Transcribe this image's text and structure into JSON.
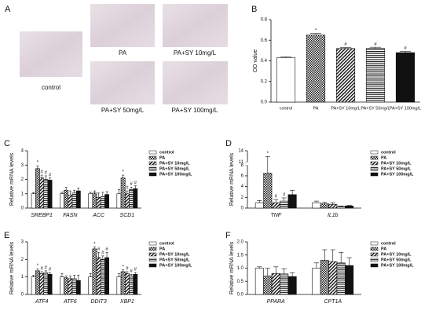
{
  "panel_a": {
    "label": "A",
    "images": [
      {
        "caption": "control"
      },
      {
        "caption": "PA"
      },
      {
        "caption": "PA+SY 10mg/L"
      },
      {
        "caption": "PA+SY 50mg/L"
      },
      {
        "caption": "PA+SY 100mg/L"
      }
    ]
  },
  "chart_data": [
    {
      "panel": "B",
      "type": "bar",
      "ylabel": "OD value",
      "categories": [
        "control",
        "PA",
        "PA+SY 10mg/L",
        "PA+SY 50mg/L",
        "PA+SY 100mg/L"
      ],
      "values": [
        0.43,
        0.65,
        0.52,
        0.52,
        0.48
      ],
      "errors": [
        0.01,
        0.015,
        0.01,
        0.012,
        0.012
      ],
      "markers": [
        null,
        "*",
        "#",
        "#",
        "#"
      ],
      "patterns": [
        "none",
        "checker",
        "diagonal",
        "horizontal",
        "solid"
      ],
      "ylim": [
        0,
        0.8
      ],
      "yticks": [
        {
          "value": 0,
          "label": "0.0"
        },
        {
          "value": 0.2,
          "label": "0.2"
        },
        {
          "value": 0.4,
          "label": "0.4"
        },
        {
          "value": 0.6,
          "label": "0.6"
        },
        {
          "value": 0.8,
          "label": "0.8"
        }
      ]
    },
    {
      "panel": "C",
      "type": "grouped_bar",
      "ylabel": "Relative mRNA levels",
      "categories": [
        "SREBP1",
        "FASN",
        "ACC",
        "SCD1"
      ],
      "series": [
        {
          "name": "control",
          "pattern": "none",
          "values": [
            1.0,
            1.0,
            1.0,
            1.0
          ],
          "errors": [
            0.08,
            0.1,
            0.1,
            0.3
          ],
          "markers": [
            null,
            null,
            null,
            null
          ]
        },
        {
          "name": "PA",
          "pattern": "checker",
          "values": [
            2.75,
            1.25,
            1.05,
            2.1
          ],
          "errors": [
            0.2,
            0.2,
            0.15,
            0.2
          ],
          "markers": [
            "*",
            null,
            null,
            "*"
          ]
        },
        {
          "name": "PA+SY 10mg/L",
          "pattern": "diagonal",
          "values": [
            2.1,
            0.9,
            0.75,
            1.0
          ],
          "errors": [
            0.2,
            0.3,
            0.3,
            0.2
          ],
          "markers": [
            "#",
            null,
            null,
            "#"
          ]
        },
        {
          "name": "PA+SY 50mg/L",
          "pattern": "horizontal",
          "values": [
            2.0,
            1.05,
            0.8,
            1.3
          ],
          "errors": [
            0.25,
            0.2,
            0.3,
            0.15
          ],
          "markers": [
            "#",
            null,
            null,
            "#"
          ]
        },
        {
          "name": "PA+SY 100mg/L",
          "pattern": "solid",
          "values": [
            1.95,
            1.2,
            0.95,
            1.35
          ],
          "errors": [
            0.15,
            0.2,
            0.2,
            0.2
          ],
          "markers": [
            "#",
            null,
            null,
            "#"
          ]
        }
      ],
      "ylim": [
        0,
        4
      ],
      "yticks": [
        0,
        1,
        2,
        3,
        4
      ]
    },
    {
      "panel": "D",
      "type": "grouped_bar",
      "ylabel": "Relative mRNA levels",
      "categories": [
        "TNF",
        "IL1b"
      ],
      "series": [
        {
          "name": "control",
          "pattern": "none",
          "values": [
            1.0,
            1.0
          ],
          "errors": [
            0.4,
            0.3
          ],
          "markers": [
            null,
            null
          ]
        },
        {
          "name": "PA",
          "pattern": "checker",
          "values": [
            6.5,
            0.8
          ],
          "errors": [
            6.0,
            0.3
          ],
          "markers": [
            "*",
            null
          ]
        },
        {
          "name": "PA+SY 10mg/L",
          "pattern": "diagonal",
          "values": [
            1.0,
            0.7
          ],
          "errors": [
            0.6,
            0.3
          ],
          "markers": [
            "#",
            null
          ]
        },
        {
          "name": "PA+SY 50mg/L",
          "pattern": "horizontal",
          "values": [
            1.3,
            0.3
          ],
          "errors": [
            0.6,
            0.1
          ],
          "markers": [
            "#",
            null
          ]
        },
        {
          "name": "PA+SY 100mg/L",
          "pattern": "solid",
          "values": [
            2.5,
            0.4
          ],
          "errors": [
            0.8,
            0.1
          ],
          "markers": [
            null,
            null
          ]
        }
      ],
      "ylim": [
        0,
        14
      ],
      "ybreak": [
        8,
        11
      ],
      "yticks": [
        0,
        2,
        4,
        6,
        8,
        11,
        14
      ]
    },
    {
      "panel": "E",
      "type": "grouped_bar",
      "ylabel": "Relative mRNA levels",
      "categories": [
        "ATF4",
        "ATF6",
        "DDIT3",
        "XBP1"
      ],
      "series": [
        {
          "name": "control",
          "pattern": "none",
          "values": [
            1.0,
            1.0,
            1.0,
            1.0
          ],
          "errors": [
            0.1,
            0.2,
            0.2,
            0.2
          ],
          "markers": [
            null,
            null,
            null,
            null
          ]
        },
        {
          "name": "PA",
          "pattern": "checker",
          "values": [
            1.35,
            0.95,
            2.6,
            1.3
          ],
          "errors": [
            0.1,
            0.1,
            0.1,
            0.1
          ],
          "markers": [
            "*",
            null,
            "*",
            "*"
          ]
        },
        {
          "name": "PA+SY 10mg/L",
          "pattern": "diagonal",
          "values": [
            1.2,
            0.9,
            2.1,
            1.2
          ],
          "errors": [
            0.1,
            0.15,
            0.3,
            0.1
          ],
          "markers": [
            "#",
            null,
            "#",
            "#"
          ]
        },
        {
          "name": "PA+SY 50mg/L",
          "pattern": "horizontal",
          "values": [
            1.25,
            0.9,
            2.0,
            1.05
          ],
          "errors": [
            0.1,
            0.2,
            0.2,
            0.1
          ],
          "markers": [
            "#",
            null,
            "#",
            "#"
          ]
        },
        {
          "name": "PA+SY 100mg/L",
          "pattern": "solid",
          "values": [
            1.15,
            0.8,
            2.1,
            1.15
          ],
          "errors": [
            0.1,
            0.3,
            0.3,
            0.1
          ],
          "markers": [
            "#",
            null,
            "#",
            "#"
          ]
        }
      ],
      "ylim": [
        0,
        3
      ],
      "yticks": [
        0,
        1,
        2,
        3
      ]
    },
    {
      "panel": "F",
      "type": "grouped_bar",
      "ylabel": "Relative mRNA levels",
      "categories": [
        "PPARA",
        "CPT1A"
      ],
      "series": [
        {
          "name": "control",
          "pattern": "none",
          "values": [
            1.0,
            1.0
          ],
          "errors": [
            0.05,
            0.2
          ],
          "markers": [
            null,
            null
          ]
        },
        {
          "name": "PA",
          "pattern": "checker",
          "values": [
            0.7,
            1.3
          ],
          "errors": [
            0.3,
            0.4
          ],
          "markers": [
            null,
            null
          ]
        },
        {
          "name": "PA+SY 10mg/L",
          "pattern": "diagonal",
          "values": [
            0.8,
            1.25
          ],
          "errors": [
            0.25,
            0.45
          ],
          "markers": [
            null,
            null
          ]
        },
        {
          "name": "PA+SY 50mg/L",
          "pattern": "horizontal",
          "values": [
            0.78,
            1.2
          ],
          "errors": [
            0.2,
            0.4
          ],
          "markers": [
            null,
            null
          ]
        },
        {
          "name": "PA+SY 100mg/L",
          "pattern": "solid",
          "values": [
            0.68,
            1.1
          ],
          "errors": [
            0.15,
            0.3
          ],
          "markers": [
            null,
            null
          ]
        }
      ],
      "ylim": [
        0,
        2
      ],
      "yticks": [
        {
          "value": 0,
          "label": "0.0"
        },
        {
          "value": 0.5,
          "label": "0.5"
        },
        {
          "value": 1,
          "label": "1.0"
        },
        {
          "value": 1.5,
          "label": "1.5"
        },
        {
          "value": 2,
          "label": "2.0"
        }
      ]
    }
  ]
}
